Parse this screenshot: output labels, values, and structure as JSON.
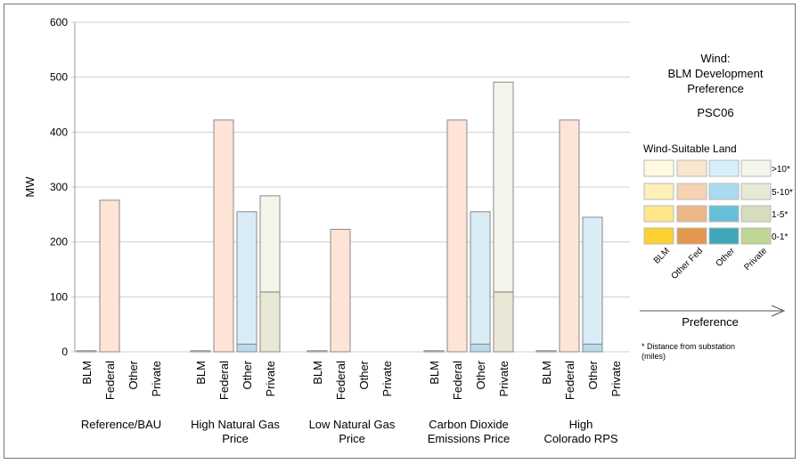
{
  "chart_data": {
    "type": "bar",
    "ylabel": "MW",
    "ylim": [
      0,
      600
    ],
    "yticks": [
      0,
      100,
      200,
      300,
      400,
      500,
      600
    ],
    "grid": true,
    "groups": [
      {
        "label": [
          "Reference/BAU"
        ],
        "bars": [
          {
            "category": "BLM",
            "segments": [
              {
                "band": ">10*",
                "value": 2
              }
            ]
          },
          {
            "category": "Federal",
            "segments": [
              {
                "band": "5-10*",
                "value": 276
              }
            ]
          },
          {
            "category": "Other",
            "segments": []
          },
          {
            "category": "Private",
            "segments": []
          }
        ]
      },
      {
        "label": [
          "High Natural Gas",
          "Price"
        ],
        "bars": [
          {
            "category": "BLM",
            "segments": [
              {
                "band": ">10*",
                "value": 2
              }
            ]
          },
          {
            "category": "Federal",
            "segments": [
              {
                "band": "5-10*",
                "value": 422
              }
            ]
          },
          {
            "category": "Other",
            "segments": [
              {
                "band": "5-10*",
                "value": 14
              },
              {
                "band": ">10*",
                "value": 241
              }
            ]
          },
          {
            "category": "Private",
            "segments": [
              {
                "band": "5-10*",
                "value": 109
              },
              {
                "band": ">10*",
                "value": 175
              }
            ]
          }
        ]
      },
      {
        "label": [
          "Low Natural Gas",
          "Price"
        ],
        "bars": [
          {
            "category": "BLM",
            "segments": [
              {
                "band": ">10*",
                "value": 2
              }
            ]
          },
          {
            "category": "Federal",
            "segments": [
              {
                "band": "5-10*",
                "value": 223
              }
            ]
          },
          {
            "category": "Other",
            "segments": []
          },
          {
            "category": "Private",
            "segments": []
          }
        ]
      },
      {
        "label": [
          "Carbon Dioxide",
          "Emissions Price"
        ],
        "bars": [
          {
            "category": "BLM",
            "segments": [
              {
                "band": ">10*",
                "value": 2
              }
            ]
          },
          {
            "category": "Federal",
            "segments": [
              {
                "band": "5-10*",
                "value": 422
              }
            ]
          },
          {
            "category": "Other",
            "segments": [
              {
                "band": "5-10*",
                "value": 14
              },
              {
                "band": ">10*",
                "value": 241
              }
            ]
          },
          {
            "category": "Private",
            "segments": [
              {
                "band": "5-10*",
                "value": 109
              },
              {
                "band": ">10*",
                "value": 382
              }
            ]
          }
        ]
      },
      {
        "label": [
          "High",
          "Colorado RPS"
        ],
        "bars": [
          {
            "category": "BLM",
            "segments": [
              {
                "band": ">10*",
                "value": 2
              }
            ]
          },
          {
            "category": "Federal",
            "segments": [
              {
                "band": "5-10*",
                "value": 422
              }
            ]
          },
          {
            "category": "Other",
            "segments": [
              {
                "band": "5-10*",
                "value": 14
              },
              {
                "band": ">10*",
                "value": 231
              }
            ]
          },
          {
            "category": "Private",
            "segments": []
          }
        ]
      }
    ],
    "legend": {
      "title": [
        "Wind:",
        "BLM Development",
        "Preference"
      ],
      "scenario": "PSC06",
      "subtitle": "Wind-Suitable Land",
      "columns": [
        "BLM",
        "Other Fed",
        "Other",
        "Private"
      ],
      "rows": [
        ">10*",
        "5-10*",
        "1-5*",
        "0-1*"
      ],
      "axis_label": "Preference",
      "footnote": [
        "* Distance from substation",
        "(miles)"
      ]
    }
  },
  "colors": {
    "BLM": {
      ">10*": "#fff9e1",
      "5-10*": "#fff0b8",
      "1-5*": "#ffe68a",
      "0-1*": "#fbd232"
    },
    "Federal": {
      ">10*": "#f8e6cf",
      "5-10*": "#f7d2b2",
      "1-5*": "#ecb688",
      "0-1*": "#e1974e"
    },
    "Other": {
      ">10*": "#d7effb",
      "5-10*": "#a9dcef",
      "1-5*": "#67bfd8",
      "0-1*": "#3fa6ba"
    },
    "Private": {
      ">10*": "#f5f5ec",
      "5-10*": "#e8e8d7",
      "1-5*": "#d6dcbd",
      "0-1*": "#bfd696"
    },
    "bar_fill": {
      "BLM": "#fff3ea",
      "Federal": "#fde4d7",
      "Other": "#daedf6",
      "Private": "#f6f5ec"
    },
    "bar_fill_lower": {
      "Other": "#b9dcec",
      "Private": "#e9e8d6"
    },
    "grid": "#d0d0d0",
    "bar_stroke": "#8a8a8a"
  }
}
